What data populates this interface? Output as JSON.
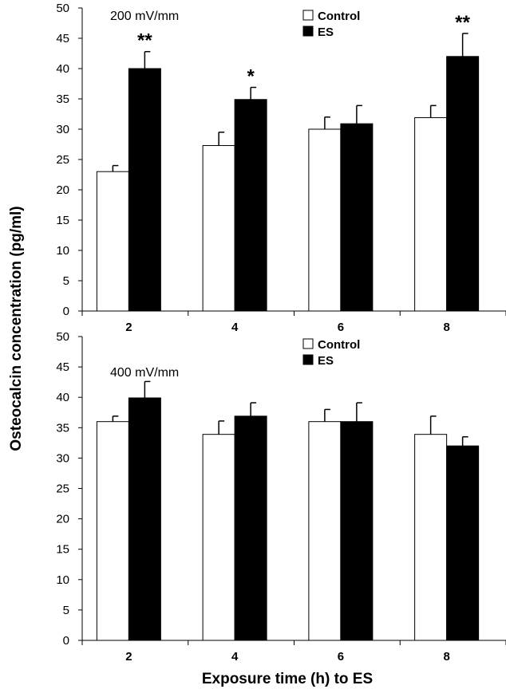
{
  "ylabel": "Osteocalcin concentration (pg/ml)",
  "xlabel": "Exposure time (h) to ES",
  "chart_data": [
    {
      "type": "bar",
      "title": "200 mV/mm",
      "categories": [
        "2",
        "4",
        "6",
        "8"
      ],
      "ylim": [
        0,
        50
      ],
      "yticks": [
        0,
        5,
        10,
        15,
        20,
        25,
        30,
        35,
        40,
        45,
        50
      ],
      "series": [
        {
          "name": "Control",
          "color": "#ffffff",
          "values": [
            23,
            27.3,
            30,
            31.9
          ],
          "errors": [
            1,
            2.2,
            2,
            2
          ]
        },
        {
          "name": "ES",
          "color": "#000000",
          "values": [
            40,
            34.9,
            30.9,
            42
          ],
          "errors": [
            2.8,
            2,
            3,
            3.8
          ]
        }
      ],
      "annotations": [
        {
          "category": "2",
          "series": "ES",
          "text": "**"
        },
        {
          "category": "4",
          "series": "ES",
          "text": "*"
        },
        {
          "category": "8",
          "series": "ES",
          "text": "**"
        }
      ],
      "legend": "top-right"
    },
    {
      "type": "bar",
      "title": "400 mV/mm",
      "categories": [
        "2",
        "4",
        "6",
        "8"
      ],
      "ylim": [
        0,
        50
      ],
      "yticks": [
        0,
        5,
        10,
        15,
        20,
        25,
        30,
        35,
        40,
        45,
        50
      ],
      "series": [
        {
          "name": "Control",
          "color": "#ffffff",
          "values": [
            36,
            33.9,
            36,
            33.9
          ],
          "errors": [
            0.9,
            2.2,
            2,
            3
          ]
        },
        {
          "name": "ES",
          "color": "#000000",
          "values": [
            39.9,
            36.9,
            36,
            32
          ],
          "errors": [
            2.7,
            2.2,
            3.1,
            1.5
          ]
        }
      ],
      "annotations": [],
      "legend": "top-right"
    }
  ]
}
